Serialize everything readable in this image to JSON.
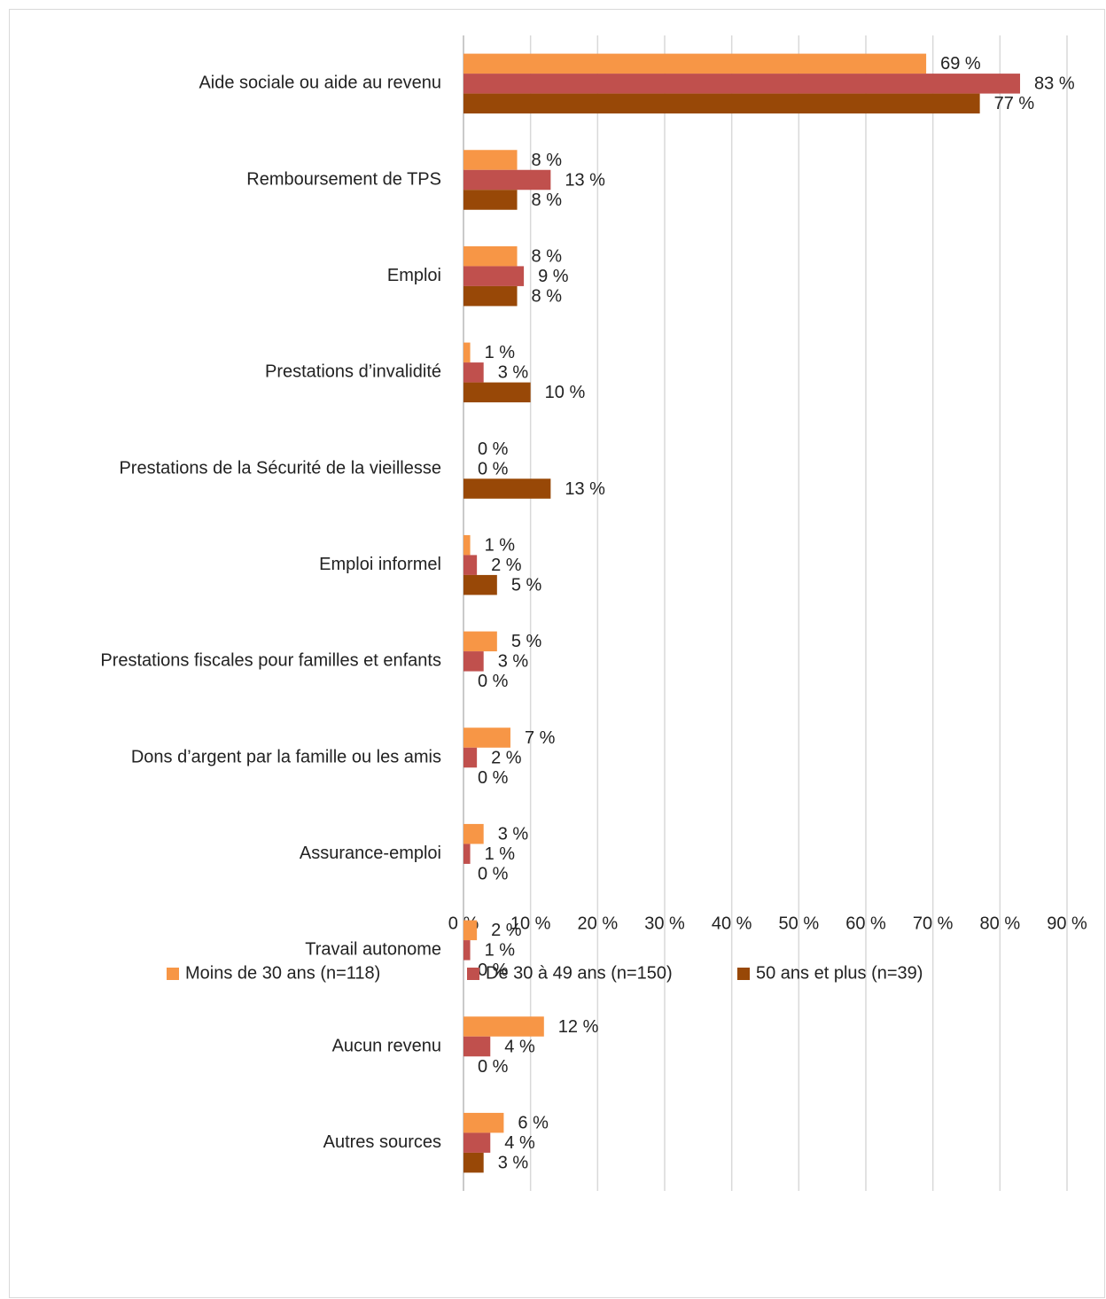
{
  "chart_data": {
    "type": "bar",
    "orientation": "horizontal",
    "categories": [
      "Aide sociale ou aide au revenu",
      "Remboursement de TPS",
      "Emploi",
      "Prestations d’invalidité",
      "Prestations de la Sécurité de la vieillesse",
      "Emploi informel",
      "Prestations fiscales pour familles et enfants",
      "Dons d’argent par la famille ou les amis",
      "Assurance-emploi",
      "Travail autonome",
      "Aucun revenu",
      "Autres sources"
    ],
    "series": [
      {
        "name": "Moins de 30 ans (n=118)",
        "color": "#f79646",
        "values": [
          69,
          8,
          8,
          1,
          0,
          1,
          5,
          7,
          3,
          2,
          12,
          6
        ],
        "value_labels": [
          "69 %",
          "8 %",
          "8 %",
          "1 %",
          "0 %",
          "1 %",
          "5 %",
          "7 %",
          "3 %",
          "2 %",
          "12 %",
          "6 %"
        ]
      },
      {
        "name": "De 30 à 49 ans (n=150)",
        "color": "#c0504d",
        "values": [
          83,
          13,
          9,
          3,
          0,
          2,
          3,
          2,
          1,
          1,
          4,
          4
        ],
        "value_labels": [
          "83 %",
          "13 %",
          "9 %",
          "3 %",
          "0 %",
          "2 %",
          "3 %",
          "2 %",
          "1 %",
          "1 %",
          "4 %",
          "4 %"
        ]
      },
      {
        "name": "50 ans et plus (n=39)",
        "color": "#984807",
        "values": [
          77,
          8,
          8,
          10,
          13,
          5,
          0,
          0,
          0,
          0,
          0,
          3
        ],
        "value_labels": [
          "77 %",
          "8 %",
          "8 %",
          "10 %",
          "13 %",
          "5 %",
          "0 %",
          "0 %",
          "0 %",
          "0 %",
          "0 %",
          "3 %"
        ]
      }
    ],
    "xlim": [
      0,
      90
    ],
    "xticks": [
      {
        "value": 0,
        "label": "0 %"
      },
      {
        "value": 10,
        "label": "10 %"
      },
      {
        "value": 20,
        "label": "20 %"
      },
      {
        "value": 30,
        "label": "30 %"
      },
      {
        "value": 40,
        "label": "40 %"
      },
      {
        "value": 50,
        "label": "50 %"
      },
      {
        "value": 60,
        "label": "60 %"
      },
      {
        "value": 70,
        "label": "70 %"
      },
      {
        "value": 80,
        "label": "80 %"
      },
      {
        "value": 90,
        "label": "90 %"
      }
    ],
    "grid": true,
    "legend": "bottom"
  }
}
